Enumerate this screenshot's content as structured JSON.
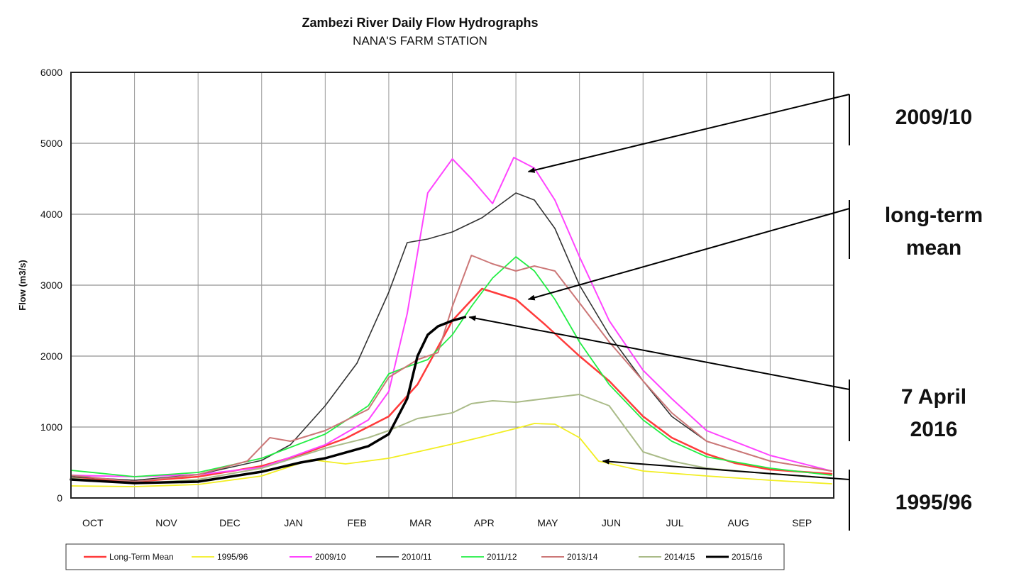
{
  "chart_data": {
    "type": "line",
    "title": "Zambezi River Daily Flow Hydrographs",
    "subtitle": "NANA'S FARM  STATION",
    "ylabel": "Flow (m3/s)",
    "xlabel": "",
    "ylim": [
      0,
      6000
    ],
    "yticks": [
      "0",
      "1000",
      "2000",
      "3000",
      "4000",
      "5000",
      "6000"
    ],
    "months": [
      "OCT",
      "NOV",
      "DEC",
      "JAN",
      "FEB",
      "MAR",
      "APR",
      "MAY",
      "JUN",
      "JUL",
      "AUG",
      "SEP"
    ],
    "grid": true,
    "legend_position": "bottom",
    "series": [
      {
        "name": "Long-Term Mean",
        "color": "#ff3b3b",
        "width": 2.5,
        "x": [
          "10-01",
          "11-01",
          "12-01",
          "01-01",
          "01-20",
          "02-10",
          "03-01",
          "03-15",
          "04-01",
          "04-15",
          "05-01",
          "05-15",
          "06-01",
          "06-15",
          "07-01",
          "07-15",
          "08-01",
          "08-15",
          "09-01",
          "09-30"
        ],
        "y": [
          280,
          230,
          300,
          450,
          610,
          840,
          1150,
          1600,
          2500,
          2950,
          2800,
          2450,
          2000,
          1650,
          1150,
          850,
          620,
          490,
          400,
          340
        ]
      },
      {
        "name": "1995/96",
        "color": "#f2ee22",
        "width": 1.8,
        "x": [
          "10-01",
          "11-01",
          "12-01",
          "01-01",
          "01-25",
          "02-10",
          "03-01",
          "03-15",
          "04-01",
          "04-15",
          "05-01",
          "05-10",
          "05-20",
          "06-01",
          "06-10",
          "07-01",
          "08-01",
          "09-01",
          "09-30"
        ],
        "y": [
          170,
          160,
          190,
          310,
          540,
          480,
          560,
          650,
          760,
          860,
          980,
          1050,
          1040,
          850,
          520,
          380,
          310,
          250,
          200
        ]
      },
      {
        "name": "2009/10",
        "color": "#ff44ff",
        "width": 2,
        "x": [
          "10-01",
          "11-01",
          "12-01",
          "01-01",
          "02-01",
          "02-20",
          "03-01",
          "03-10",
          "03-20",
          "04-01",
          "04-10",
          "04-20",
          "04-30",
          "05-10",
          "05-20",
          "06-01",
          "06-15",
          "07-01",
          "07-15",
          "08-01",
          "09-01",
          "09-30"
        ],
        "y": [
          320,
          300,
          330,
          430,
          750,
          1100,
          1500,
          2600,
          4300,
          4780,
          4500,
          4150,
          4800,
          4650,
          4200,
          3400,
          2500,
          1800,
          1400,
          950,
          600,
          380
        ]
      },
      {
        "name": "2010/11",
        "color": "#333333",
        "width": 1.6,
        "x": [
          "10-01",
          "11-01",
          "12-01",
          "01-01",
          "01-15",
          "02-01",
          "02-15",
          "03-01",
          "03-10",
          "03-20",
          "04-01",
          "04-15",
          "05-01",
          "05-10",
          "05-20",
          "06-01",
          "06-15",
          "07-01",
          "07-15",
          "08-01",
          "09-01",
          "09-30"
        ],
        "y": [
          300,
          250,
          330,
          530,
          750,
          1300,
          1900,
          2900,
          3600,
          3650,
          3750,
          3950,
          4300,
          4200,
          3800,
          3000,
          2300,
          1650,
          1150,
          800,
          520,
          380
        ]
      },
      {
        "name": "2011/12",
        "color": "#22ee44",
        "width": 1.8,
        "x": [
          "10-01",
          "11-01",
          "12-01",
          "01-01",
          "02-01",
          "02-20",
          "03-01",
          "03-10",
          "03-20",
          "04-01",
          "04-10",
          "04-20",
          "05-01",
          "05-10",
          "05-20",
          "06-01",
          "06-15",
          "07-01",
          "07-15",
          "08-01",
          "09-01",
          "09-30"
        ],
        "y": [
          390,
          300,
          360,
          560,
          900,
          1300,
          1750,
          1850,
          1950,
          2300,
          2700,
          3100,
          3400,
          3200,
          2800,
          2200,
          1600,
          1100,
          800,
          580,
          420,
          320
        ]
      },
      {
        "name": "2013/14",
        "color": "#cc7777",
        "width": 2,
        "x": [
          "10-01",
          "11-01",
          "12-01",
          "12-25",
          "01-05",
          "01-15",
          "02-01",
          "02-20",
          "03-01",
          "03-15",
          "03-25",
          "04-01",
          "04-10",
          "04-20",
          "05-01",
          "05-10",
          "05-20",
          "06-01",
          "06-15",
          "07-01",
          "07-15",
          "08-01",
          "09-01",
          "09-30"
        ],
        "y": [
          320,
          230,
          330,
          520,
          850,
          800,
          950,
          1250,
          1700,
          1950,
          2050,
          2700,
          3420,
          3300,
          3200,
          3270,
          3200,
          2750,
          2200,
          1650,
          1200,
          800,
          520,
          380
        ]
      },
      {
        "name": "2014/15",
        "color": "#aabb88",
        "width": 2,
        "x": [
          "10-01",
          "11-01",
          "12-01",
          "01-01",
          "02-01",
          "02-20",
          "03-01",
          "03-15",
          "04-01",
          "04-10",
          "04-20",
          "05-01",
          "05-15",
          "06-01",
          "06-15",
          "07-01",
          "07-15",
          "08-01",
          "09-01",
          "09-30"
        ],
        "y": [
          280,
          200,
          260,
          420,
          700,
          850,
          950,
          1120,
          1200,
          1330,
          1370,
          1350,
          1400,
          1460,
          1300,
          650,
          520,
          420,
          340,
          280
        ]
      },
      {
        "name": "2015/16",
        "color": "#000000",
        "width": 3.5,
        "x": [
          "10-01",
          "11-01",
          "12-01",
          "01-01",
          "01-20",
          "02-01",
          "02-20",
          "03-01",
          "03-10",
          "03-15",
          "03-20",
          "03-25",
          "04-01",
          "04-07"
        ],
        "y": [
          260,
          210,
          230,
          370,
          500,
          560,
          730,
          900,
          1400,
          2000,
          2300,
          2420,
          2500,
          2550
        ]
      }
    ],
    "annotations": [
      {
        "label": "2009/10",
        "lines": [
          "2009/10"
        ],
        "target": {
          "x": "05-05",
          "y": 4600
        }
      },
      {
        "label": "long-term mean",
        "lines": [
          "long-term",
          "mean"
        ],
        "target": {
          "x": "05-05",
          "y": 2800
        }
      },
      {
        "label": "7 April 2016",
        "lines": [
          "7 April",
          "2016"
        ],
        "target": {
          "x": "04-07",
          "y": 2550
        }
      },
      {
        "label": "1995/96",
        "lines": [
          "1995/96"
        ],
        "target": {
          "x": "06-10",
          "y": 520
        }
      }
    ]
  }
}
